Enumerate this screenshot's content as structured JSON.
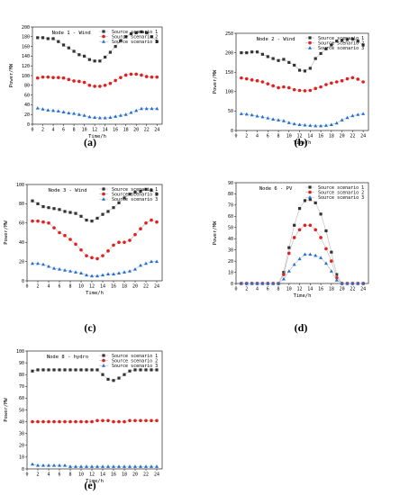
{
  "chart_data": [
    {
      "type": "line",
      "panel": "(a)",
      "title": "Node 1 - Wind",
      "xlabel": "Time/h",
      "ylabel": "Power/MW",
      "xlim": [
        0,
        25
      ],
      "ylim": [
        0,
        200
      ],
      "xticks": [
        0,
        2,
        4,
        6,
        8,
        10,
        12,
        14,
        16,
        18,
        20,
        22,
        24
      ],
      "yticks": [
        0,
        20,
        40,
        60,
        80,
        100,
        120,
        140,
        160,
        180,
        200
      ],
      "legend": "top-right",
      "x": [
        1,
        2,
        3,
        4,
        5,
        6,
        7,
        8,
        9,
        10,
        11,
        12,
        13,
        14,
        15,
        16,
        17,
        18,
        19,
        20,
        21,
        22,
        23,
        24
      ],
      "series": [
        {
          "name": "Source scenario 1",
          "color": "#333333",
          "marker": "square",
          "values": [
            178,
            178,
            176,
            176,
            170,
            163,
            157,
            150,
            143,
            140,
            133,
            130,
            130,
            138,
            148,
            160,
            172,
            180,
            186,
            188,
            190,
            188,
            180,
            170
          ]
        },
        {
          "name": "Source scenario 2",
          "color": "#e02020",
          "marker": "circle",
          "values": [
            95,
            97,
            97,
            96,
            96,
            95,
            92,
            89,
            88,
            86,
            80,
            78,
            78,
            80,
            84,
            90,
            96,
            101,
            103,
            103,
            101,
            98,
            97,
            97
          ]
        },
        {
          "name": "Source scenario 3",
          "color": "#1f6fd6",
          "marker": "triangle",
          "values": [
            33,
            31,
            29,
            28,
            27,
            25,
            23,
            22,
            20,
            18,
            15,
            14,
            13,
            13,
            14,
            16,
            18,
            20,
            24,
            28,
            32,
            32,
            32,
            32
          ]
        }
      ]
    },
    {
      "type": "line",
      "panel": "(b)",
      "title": "Node 2 - Wind",
      "xlabel": "Time/h",
      "ylabel": "Power/MW",
      "xlim": [
        0,
        25
      ],
      "ylim": [
        0,
        250
      ],
      "xticks": [
        0,
        2,
        4,
        6,
        8,
        10,
        12,
        14,
        16,
        18,
        20,
        22,
        24
      ],
      "yticks": [
        0,
        50,
        100,
        150,
        200,
        250
      ],
      "legend": "top-right",
      "x": [
        1,
        2,
        3,
        4,
        5,
        6,
        7,
        8,
        9,
        10,
        11,
        12,
        13,
        14,
        15,
        16,
        17,
        18,
        19,
        20,
        21,
        22,
        23,
        24
      ],
      "series": [
        {
          "name": "Source scenario 1",
          "color": "#333333",
          "marker": "square",
          "values": [
            200,
            200,
            202,
            202,
            196,
            190,
            185,
            180,
            183,
            175,
            168,
            155,
            153,
            160,
            185,
            198,
            210,
            220,
            230,
            232,
            234,
            235,
            230,
            220
          ]
        },
        {
          "name": "Source scenario 2",
          "color": "#e02020",
          "marker": "circle",
          "values": [
            135,
            133,
            130,
            128,
            125,
            120,
            115,
            110,
            112,
            110,
            105,
            103,
            102,
            103,
            108,
            112,
            118,
            122,
            125,
            128,
            133,
            136,
            132,
            125
          ]
        },
        {
          "name": "Source scenario 3",
          "color": "#1f6fd6",
          "marker": "triangle",
          "values": [
            43,
            42,
            40,
            37,
            35,
            32,
            29,
            27,
            25,
            20,
            17,
            15,
            14,
            13,
            12,
            12,
            13,
            15,
            19,
            27,
            33,
            38,
            41,
            43
          ]
        }
      ]
    },
    {
      "type": "line",
      "panel": "(c)",
      "title": "Node 3 - Wind",
      "xlabel": "Time/h",
      "ylabel": "Power/MW",
      "xlim": [
        0,
        25
      ],
      "ylim": [
        0,
        100
      ],
      "xticks": [
        0,
        2,
        4,
        6,
        8,
        10,
        12,
        14,
        16,
        18,
        20,
        22,
        24
      ],
      "yticks": [
        0,
        20,
        40,
        60,
        80,
        100
      ],
      "legend": "top-right",
      "x": [
        1,
        2,
        3,
        4,
        5,
        6,
        7,
        8,
        9,
        10,
        11,
        12,
        13,
        14,
        15,
        16,
        17,
        18,
        19,
        20,
        21,
        22,
        23,
        24
      ],
      "series": [
        {
          "name": "Source scenario 1",
          "color": "#333333",
          "marker": "square",
          "values": [
            83,
            80,
            77,
            76,
            75,
            74,
            72,
            71,
            70,
            67,
            63,
            62,
            65,
            69,
            72,
            76,
            81,
            86,
            90,
            92,
            93,
            95,
            94,
            90
          ]
        },
        {
          "name": "Source scenario 2",
          "color": "#e02020",
          "marker": "circle",
          "values": [
            62,
            62,
            61,
            60,
            55,
            50,
            47,
            43,
            38,
            32,
            26,
            24,
            23,
            26,
            31,
            37,
            40,
            40,
            42,
            48,
            54,
            60,
            63,
            61
          ]
        },
        {
          "name": "Source scenario 3",
          "color": "#1f6fd6",
          "marker": "triangle",
          "values": [
            18,
            18,
            17,
            15,
            13,
            12,
            11,
            10,
            9,
            8,
            6,
            5,
            5,
            6,
            7,
            7,
            8,
            9,
            10,
            12,
            16,
            18,
            20,
            20
          ]
        }
      ]
    },
    {
      "type": "line",
      "panel": "(d)",
      "title": "Node 6 - PV",
      "xlabel": "Time/h",
      "ylabel": "Power/MW",
      "xlim": [
        0,
        25
      ],
      "ylim": [
        0,
        90
      ],
      "xticks": [
        0,
        2,
        4,
        6,
        8,
        10,
        12,
        14,
        16,
        18,
        20,
        22,
        24
      ],
      "yticks": [
        0,
        10,
        20,
        30,
        40,
        50,
        60,
        70,
        80,
        90
      ],
      "legend": "top-right",
      "x": [
        1,
        2,
        3,
        4,
        5,
        6,
        7,
        8,
        9,
        10,
        11,
        12,
        13,
        14,
        15,
        16,
        17,
        18,
        19,
        20,
        21,
        22,
        23,
        24
      ],
      "series": [
        {
          "name": "Source scenario 1",
          "color": "#333333",
          "marker": "square",
          "values": [
            0,
            0,
            0,
            0,
            0,
            0,
            0,
            0,
            10,
            32,
            52,
            67,
            74,
            75,
            72,
            62,
            47,
            28,
            8,
            0,
            0,
            0,
            0,
            0
          ]
        },
        {
          "name": "Source scenario 2",
          "color": "#e02020",
          "marker": "circle",
          "values": [
            0,
            0,
            0,
            0,
            0,
            0,
            0,
            0,
            8,
            27,
            41,
            48,
            52,
            52,
            48,
            41,
            31,
            20,
            5,
            0,
            0,
            0,
            0,
            0
          ]
        },
        {
          "name": "Source scenario 3",
          "color": "#1f6fd6",
          "marker": "triangle",
          "values": [
            0,
            0,
            0,
            0,
            0,
            0,
            0,
            0,
            4,
            11,
            17,
            22,
            26,
            26,
            25,
            23,
            18,
            11,
            3,
            0,
            0,
            0,
            0,
            0
          ]
        }
      ]
    },
    {
      "type": "line",
      "panel": "(e)",
      "title": "Node 8 - hydro",
      "xlabel": "Time/h",
      "ylabel": "Power/MW",
      "xlim": [
        0,
        25
      ],
      "ylim": [
        0,
        100
      ],
      "xticks": [
        0,
        2,
        4,
        6,
        8,
        10,
        12,
        14,
        16,
        18,
        20,
        22,
        24
      ],
      "yticks": [
        0,
        10,
        20,
        30,
        40,
        50,
        60,
        70,
        80,
        90,
        100
      ],
      "legend": "top-right",
      "x": [
        1,
        2,
        3,
        4,
        5,
        6,
        7,
        8,
        9,
        10,
        11,
        12,
        13,
        14,
        15,
        16,
        17,
        18,
        19,
        20,
        21,
        22,
        23,
        24
      ],
      "series": [
        {
          "name": "Source scenario 1",
          "color": "#333333",
          "marker": "square",
          "values": [
            83,
            84,
            84,
            84,
            84,
            84,
            84,
            84,
            84,
            84,
            84,
            84,
            84,
            80,
            76,
            75,
            77,
            80,
            83,
            84,
            84,
            84,
            84,
            84
          ]
        },
        {
          "name": "Source scenario 2",
          "color": "#e02020",
          "marker": "circle",
          "values": [
            40,
            40,
            40,
            40,
            40,
            40,
            40,
            40,
            40,
            40,
            40,
            40,
            41,
            41,
            41,
            40,
            40,
            40,
            41,
            41,
            41,
            41,
            41,
            41
          ]
        },
        {
          "name": "Source scenario 3",
          "color": "#1f6fd6",
          "marker": "triangle",
          "values": [
            4,
            3,
            3,
            3,
            3,
            3,
            3,
            2,
            2,
            2,
            2,
            2,
            2,
            2,
            2,
            2,
            2,
            2,
            2,
            2,
            2,
            2,
            2,
            2
          ]
        }
      ]
    }
  ]
}
